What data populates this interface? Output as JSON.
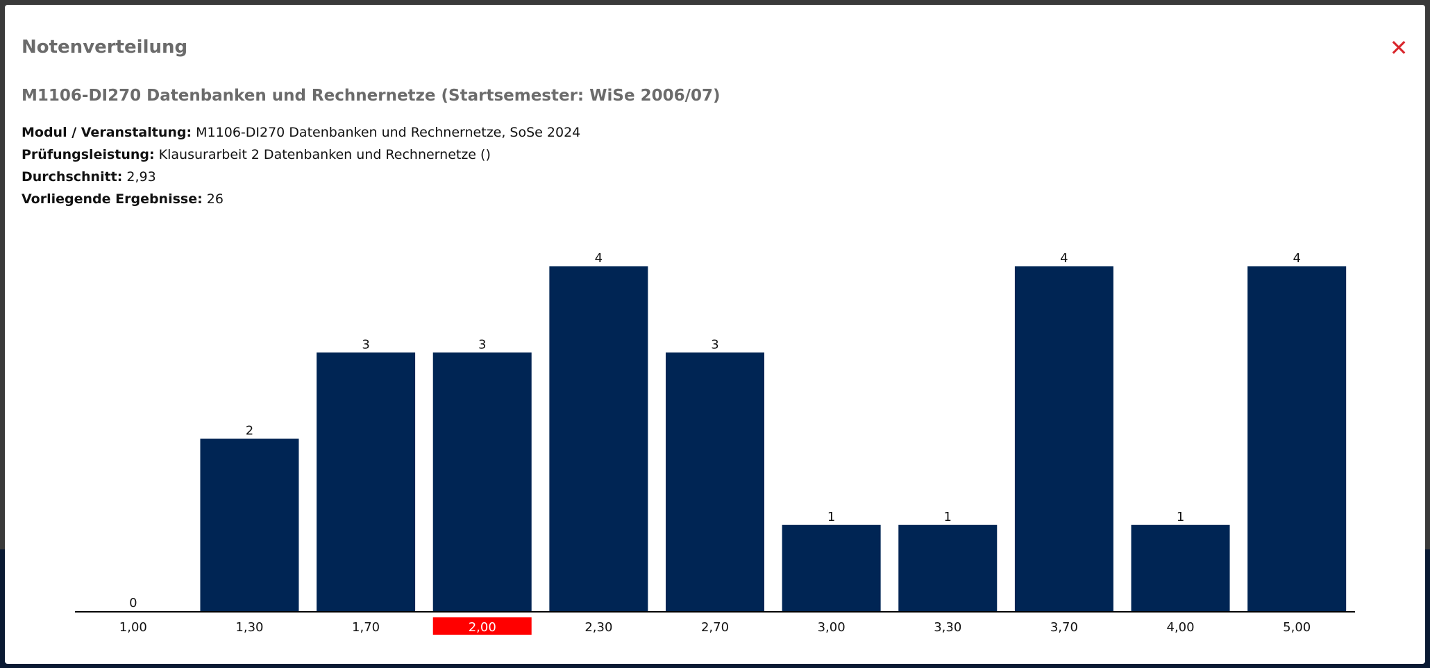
{
  "modal": {
    "title": "Notenverteilung",
    "close_icon": "close-x-icon",
    "subtitle": "M1106-DI270 Datenbanken und Rechnernetze (Startsemester: WiSe 2006/07)",
    "info": [
      {
        "label": "Modul / Veranstaltung:",
        "value": "M1106-DI270 Datenbanken und Rechnernetze, SoSe 2024"
      },
      {
        "label": "Prüfungsleistung:",
        "value": "Klausurarbeit 2 Datenbanken und Rechnernetze ()"
      },
      {
        "label": "Durchschnitt:",
        "value": "2,93"
      },
      {
        "label": "Vorliegende Ergebnisse:",
        "value": "26"
      }
    ]
  },
  "colors": {
    "bar": "#002554",
    "highlight": "#ff0000",
    "close": "#d9262c"
  },
  "chart_data": {
    "type": "bar",
    "categories": [
      "1,00",
      "1,30",
      "1,70",
      "2,00",
      "2,30",
      "2,70",
      "3,00",
      "3,30",
      "3,70",
      "4,00",
      "5,00"
    ],
    "values": [
      0,
      2,
      3,
      3,
      4,
      3,
      1,
      1,
      4,
      1,
      4
    ],
    "highlighted_category": "2,00",
    "ylim": [
      0,
      4
    ],
    "grid": false,
    "legend": "none"
  }
}
